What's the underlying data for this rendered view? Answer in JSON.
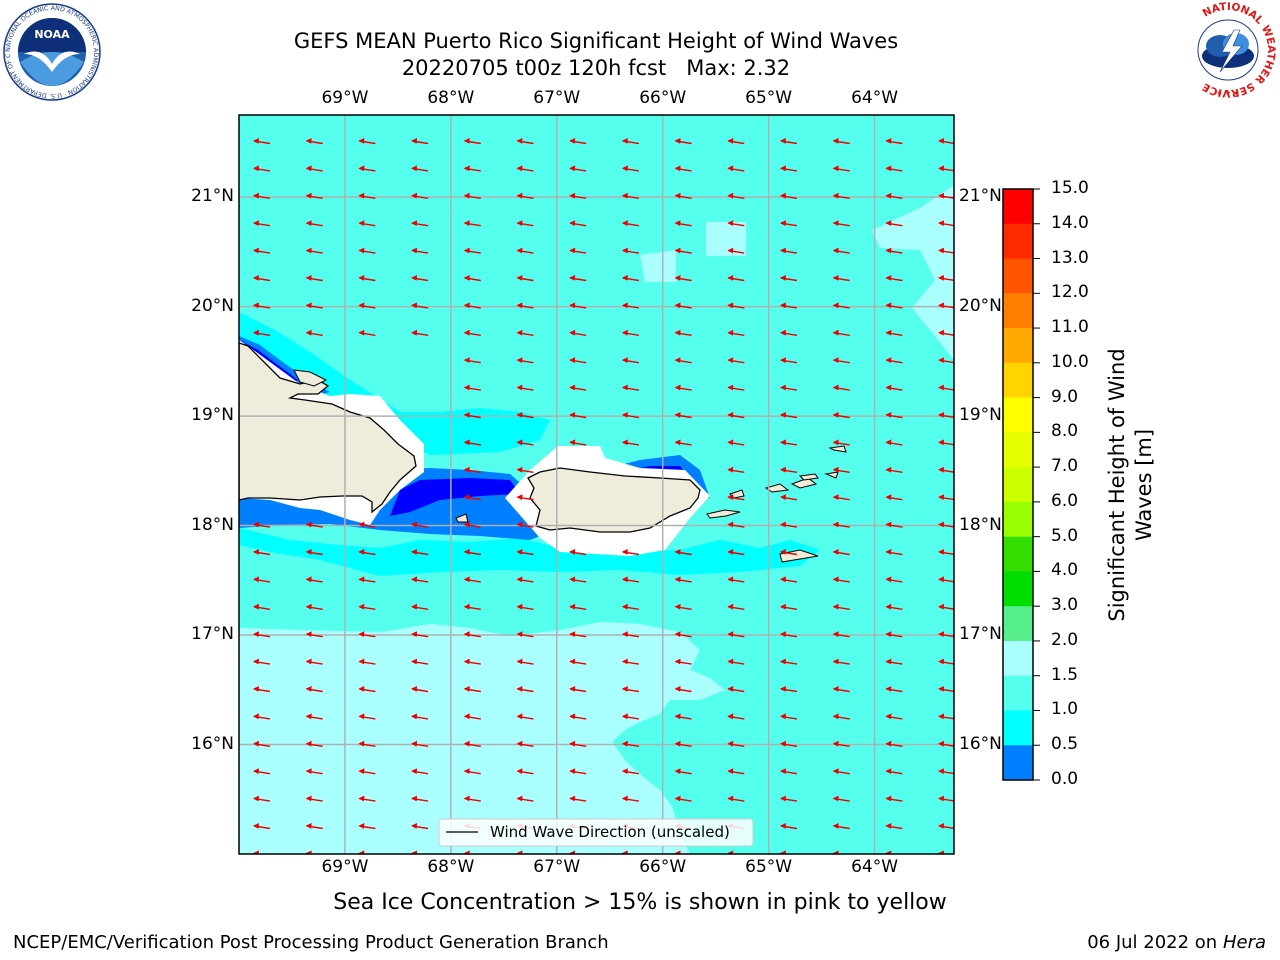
{
  "title": {
    "line1": "GEFS MEAN Puerto Rico Significant Height of Wind Waves",
    "line2": "20220705 t00z 120h fcst   Max: 2.32"
  },
  "axes": {
    "lon_labels": [
      "69°W",
      "68°W",
      "67°W",
      "66°W",
      "65°W",
      "64°W"
    ],
    "lat_labels": [
      "21°N",
      "20°N",
      "19°N",
      "18°N",
      "17°N",
      "16°N"
    ]
  },
  "legend": {
    "label": "Wind Wave Direction (unscaled)"
  },
  "colorbar": {
    "label_line1": "Significant Height of Wind",
    "label_line2": "Waves [m]",
    "ticks": [
      "15.0",
      "14.0",
      "13.0",
      "12.0",
      "11.0",
      "10.0",
      "9.0",
      "8.0",
      "7.0",
      "6.0",
      "5.0",
      "4.0",
      "3.0",
      "2.0",
      "1.5",
      "1.0",
      "0.5",
      "0.0"
    ],
    "colors": [
      "#ff0000",
      "#ff2a00",
      "#ff5500",
      "#ff8000",
      "#ffaa00",
      "#ffd400",
      "#ffff00",
      "#e6ff00",
      "#ccff00",
      "#99ff00",
      "#33dd00",
      "#00dd00",
      "#55ee88",
      "#aaffff",
      "#55ffee",
      "#00ffff",
      "#0080ff",
      "#0000ff"
    ]
  },
  "note": "Sea Ice Concentration > 15% is shown in pink to yellow",
  "footer": {
    "left": "NCEP/EMC/Verification Post Processing Product Generation Branch",
    "right_date": "06 Jul 2022 on ",
    "right_host": "Hera"
  },
  "logos": {
    "noaa_text": "NOAA",
    "noaa_ring": "NATIONAL OCEANIC AND ATMOSPHERIC ADMINISTRATION · U.S. DEPARTMENT OF COMMERCE",
    "nws_ring": "NATIONAL WEATHER SERVICE"
  },
  "chart_data": {
    "type": "heatmap",
    "title": "GEFS MEAN Puerto Rico Significant Height of Wind Waves",
    "subtitle": "20220705 t00z 120h fcst   Max: 2.32",
    "variable": "Significant Height of Wind Waves [m]",
    "max_value": 2.32,
    "lon_range": [
      -70.0,
      -63.25
    ],
    "lat_range": [
      15.0,
      21.75
    ],
    "lon_ticks": [
      -69,
      -68,
      -67,
      -66,
      -65,
      -64
    ],
    "lat_ticks": [
      16,
      17,
      18,
      19,
      20,
      21
    ],
    "color_levels": [
      0.0,
      0.5,
      1.0,
      1.5,
      2.0,
      3.0,
      4.0,
      5.0,
      6.0,
      7.0,
      8.0,
      9.0,
      10.0,
      11.0,
      12.0,
      13.0,
      14.0,
      15.0
    ],
    "prevailing_wave_direction": "from east (arrows pointing west)",
    "grid": true
  }
}
